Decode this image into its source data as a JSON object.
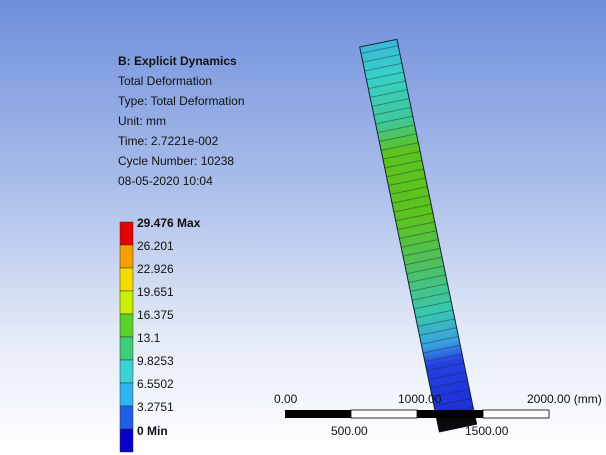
{
  "header": {
    "title": "B: Explicit Dynamics",
    "lines": [
      "Total Deformation",
      "Type: Total Deformation",
      "Unit: mm",
      "Time: 2.7221e-002",
      "Cycle Number: 10238",
      "08-05-2020 10:04"
    ]
  },
  "legend": {
    "labels": [
      "29.476 Max",
      "26.201",
      "22.926",
      "19.651",
      "16.375",
      "13.1",
      "9.8253",
      "6.5502",
      "3.2751",
      "0 Min"
    ]
  },
  "scale_bar": {
    "top_labels": [
      "0.00",
      "1000.00",
      "2000.00 (mm)"
    ],
    "bottom_labels": [
      "500.00",
      "1500.00"
    ]
  }
}
